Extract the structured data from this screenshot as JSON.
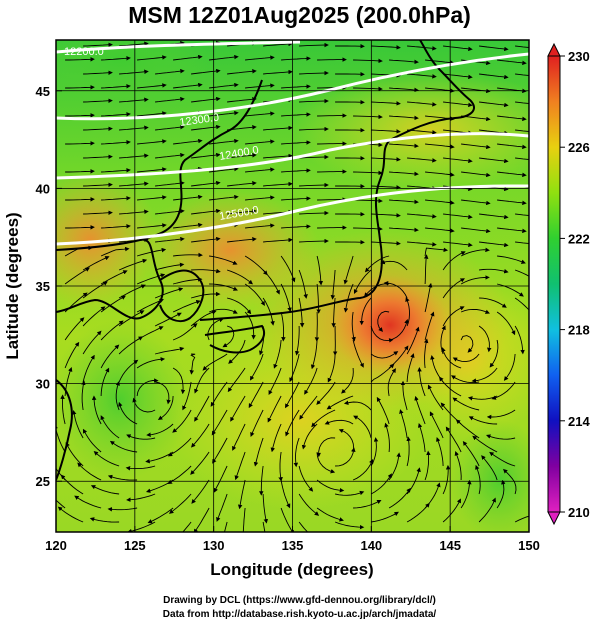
{
  "title": "MSM 12Z01Aug2025 (200.0hPa)",
  "xlabel": "Longitude (degrees)",
  "ylabel": "Latitude  (degrees)",
  "xticks": [
    120,
    125,
    130,
    135,
    140,
    145,
    150
  ],
  "yticks": [
    25,
    30,
    35,
    40,
    45
  ],
  "xlim": [
    120,
    150
  ],
  "ylim": [
    22.4,
    47.6
  ],
  "colorbar": {
    "ticks": [
      210,
      214,
      218,
      222,
      226,
      230
    ],
    "range": [
      210,
      230
    ]
  },
  "contours": [
    {
      "label": "12200.0",
      "lat_start": 46.5,
      "lat_end": 48.0
    },
    {
      "label": "12300.0",
      "lat_start": 44.4,
      "lat_end": 46.8
    },
    {
      "label": "12400.0",
      "lat_start": 41.3,
      "lat_end": 43.3
    },
    {
      "label": "12500.0",
      "lat_start": 38.0,
      "lat_end": 40.5
    }
  ],
  "footer": {
    "line1": "Drawing by DCL (https://www.gfd-dennou.org/library/dcl/)",
    "line2": "Data from http://database.rish.kyoto-u.ac.jp/arch/jmadata/"
  }
}
